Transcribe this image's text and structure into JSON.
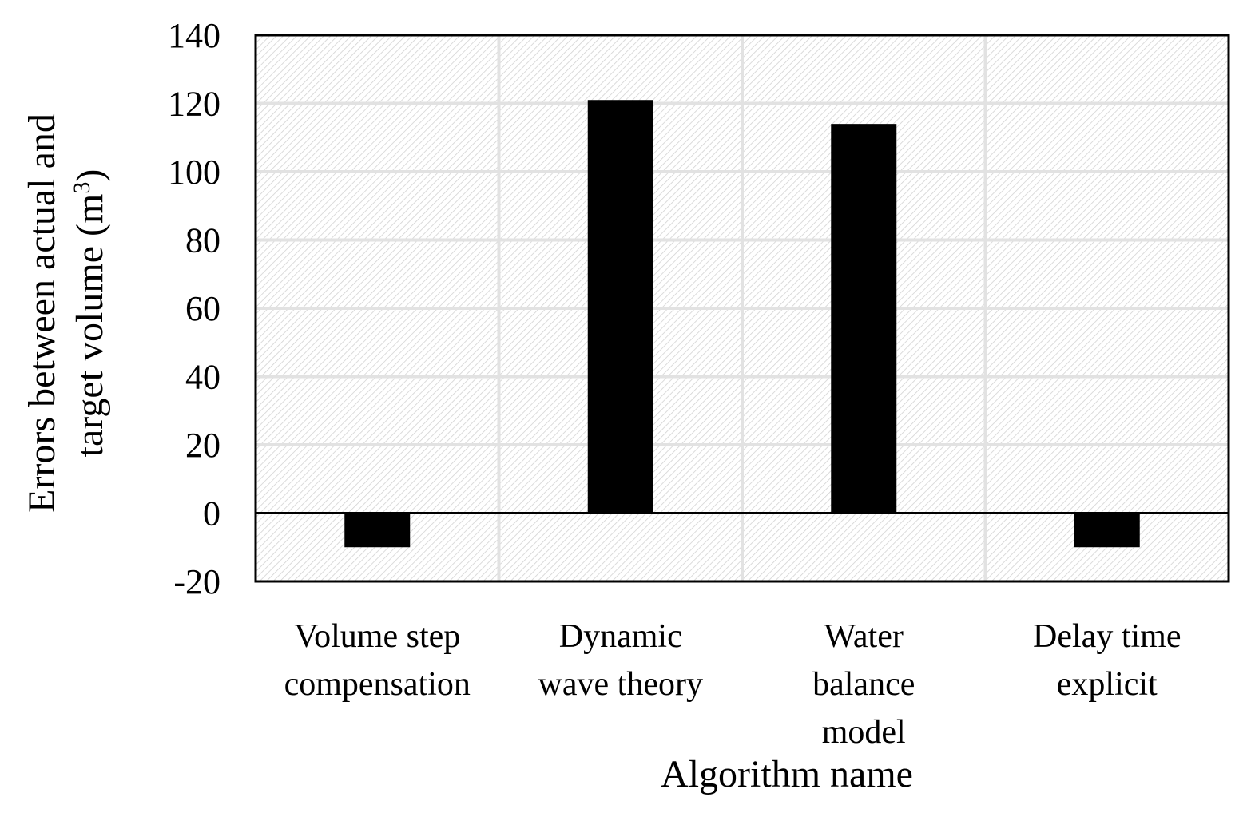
{
  "chart_data": {
    "type": "bar",
    "title": "",
    "xlabel": "Algorithm name",
    "ylabel_lines": [
      "Errors between actual and",
      "target volume (m",
      "3",
      ")"
    ],
    "categories": [
      [
        "Volume step",
        "compensation"
      ],
      [
        "Dynamic",
        "wave theory"
      ],
      [
        "Water",
        "balance",
        "model"
      ],
      [
        "Delay time",
        "explicit"
      ]
    ],
    "values": [
      -10,
      121,
      114,
      -10
    ],
    "ylim": [
      -20,
      140
    ],
    "yticks": [
      -20,
      0,
      20,
      40,
      60,
      80,
      100,
      120,
      140
    ],
    "grid": true,
    "colors": {
      "bar": "#000000",
      "grid": "#e2e2e2",
      "background_hatch": "#d2d2d2"
    }
  }
}
